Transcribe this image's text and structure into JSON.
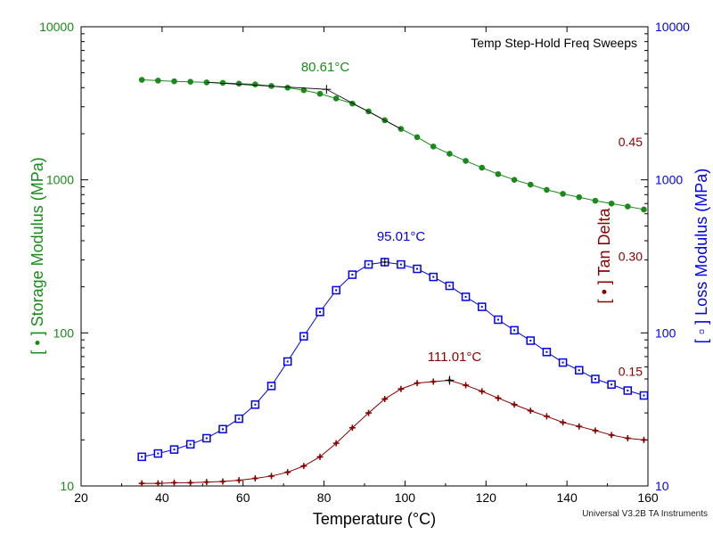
{
  "chart_data": {
    "type": "line",
    "title": "Temp Step-Hold Freq Sweeps",
    "xlabel": "Temperature (°C)",
    "xlim": [
      20,
      160
    ],
    "x_ticks": [
      "20",
      "40",
      "60",
      "80",
      "100",
      "120",
      "140",
      "160"
    ],
    "y_left": {
      "label": "[ • ] Storage Modulus (MPa)",
      "scale": "log",
      "lim": [
        10,
        10000
      ],
      "ticks": [
        "10",
        "100",
        "1000",
        "10000"
      ],
      "color": "#1a8a1a"
    },
    "y_right": {
      "label": "[ ▫ ] Loss Modulus (MPa)",
      "scale": "log",
      "lim": [
        10,
        10000
      ],
      "ticks": [
        "10",
        "100",
        "1000",
        "10000"
      ],
      "color": "#0000ee"
    },
    "y_tan": {
      "label": "[ • ] Tan Delta",
      "ticks": [
        "0.15",
        "0.30",
        "0.45"
      ],
      "color": "#8b0000"
    },
    "series": [
      {
        "name": "Storage Modulus",
        "axis": "left",
        "color": "#1a8a1a",
        "marker": "dot",
        "x": [
          35,
          39,
          43,
          47,
          51,
          55,
          59,
          63,
          67,
          71,
          75,
          79,
          83,
          87,
          91,
          95,
          99,
          103,
          107,
          111,
          115,
          119,
          123,
          127,
          131,
          135,
          139,
          143,
          147,
          151,
          155,
          159
        ],
        "values": [
          4500,
          4450,
          4400,
          4370,
          4330,
          4300,
          4250,
          4200,
          4100,
          4000,
          3850,
          3650,
          3400,
          3150,
          2800,
          2450,
          2150,
          1900,
          1650,
          1480,
          1330,
          1200,
          1090,
          1000,
          930,
          860,
          810,
          770,
          730,
          700,
          670,
          640
        ]
      },
      {
        "name": "Loss Modulus",
        "axis": "left",
        "color": "#0000ee",
        "marker": "square",
        "x": [
          35,
          39,
          43,
          47,
          51,
          55,
          59,
          63,
          67,
          71,
          75,
          79,
          83,
          87,
          91,
          95,
          99,
          103,
          107,
          111,
          115,
          119,
          123,
          127,
          131,
          135,
          139,
          143,
          147,
          151,
          155,
          159
        ],
        "values": [
          15.5,
          16.3,
          17.3,
          18.7,
          20.5,
          23.5,
          27.5,
          34,
          45,
          65,
          95,
          137,
          190,
          240,
          280,
          290,
          280,
          262,
          232,
          203,
          172,
          148,
          122,
          104,
          89,
          75,
          64,
          57,
          50,
          46,
          42,
          39
        ]
      },
      {
        "name": "Tan Delta",
        "axis": "tan",
        "color": "#8b0000",
        "marker": "star",
        "x": [
          35,
          39,
          43,
          47,
          51,
          55,
          59,
          63,
          67,
          71,
          75,
          79,
          83,
          87,
          91,
          95,
          99,
          103,
          107,
          111,
          115,
          119,
          123,
          127,
          131,
          135,
          139,
          143,
          147,
          151,
          155,
          159
        ],
        "values": [
          10.4,
          10.4,
          10.5,
          10.5,
          10.6,
          10.7,
          10.9,
          11.2,
          11.6,
          12.3,
          13.5,
          15.5,
          19,
          24,
          30,
          37,
          43,
          47,
          48,
          49,
          45.5,
          41.5,
          37.5,
          34,
          31,
          28.5,
          26,
          24.5,
          23,
          21.5,
          20.5,
          20
        ]
      }
    ],
    "annotations": [
      {
        "text": "80.61°C",
        "series": "Storage Modulus",
        "x": 80.61,
        "y": 3900
      },
      {
        "text": "95.01°C",
        "series": "Loss Modulus",
        "x": 95.01,
        "y": 290
      },
      {
        "text": "111.01°C",
        "series": "Tan Delta",
        "x": 111.01,
        "y": 49
      }
    ],
    "credit": "Universal V3.2B TA Instruments"
  }
}
